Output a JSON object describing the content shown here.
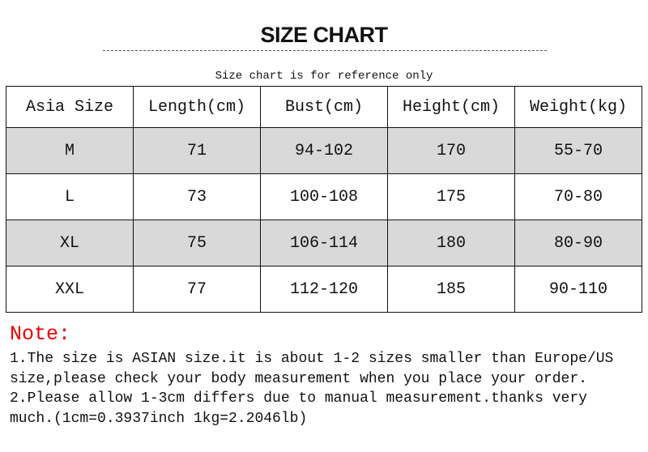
{
  "title": "SIZE CHART",
  "subtitle": "Size chart is for reference only",
  "table": {
    "headers": [
      "Asia Size",
      "Length(cm)",
      "Bust(cm)",
      "Height(cm)",
      "Weight(kg)"
    ],
    "rows": [
      [
        "M",
        "71",
        "94-102",
        "170",
        "55-70"
      ],
      [
        "L",
        "73",
        "100-108",
        "175",
        "70-80"
      ],
      [
        "XL",
        "75",
        "106-114",
        "180",
        "80-90"
      ],
      [
        "XXL",
        "77",
        "112-120",
        "185",
        "90-110"
      ]
    ],
    "shaded_row_color": "#d9d9d9"
  },
  "note": {
    "label": "Note:",
    "label_color": "#e00000",
    "lines": [
      "1.The size is ASIAN size.it is about 1-2 sizes smaller than Europe/US",
      "size,please check your body measurement when you place your order.",
      "2.Please allow 1-3cm differs due to manual measurement.thanks very",
      "much.(1cm=0.3937inch 1kg=2.2046lb)"
    ]
  }
}
